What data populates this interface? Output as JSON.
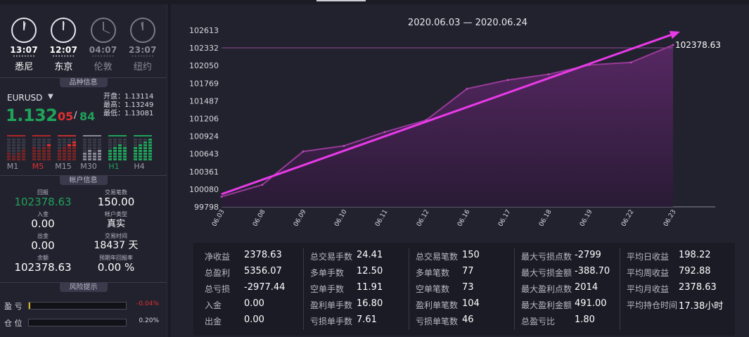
{
  "clocks": [
    {
      "time": "13:07",
      "city": "悉尼",
      "state": "active"
    },
    {
      "time": "12:07",
      "city": "东京",
      "state": "active"
    },
    {
      "time": "04:07",
      "city": "伦敦",
      "state": "dim"
    },
    {
      "time": "23:07",
      "city": "纽约",
      "state": "dim"
    }
  ],
  "sections": {
    "symbol_info": "品种信息",
    "account_info": "帐户信息",
    "risk": "风险提示"
  },
  "symbol": {
    "name": "EURUSD",
    "price_main": "1.132",
    "price_red": "05",
    "price_sep": "/",
    "price_green": "84",
    "open": "开盘：1.13114",
    "high": "最高：1.13249",
    "low": "最低：1.13081",
    "timeframes": [
      "M1",
      "M5",
      "M15",
      "M30",
      "H1",
      "H4"
    ],
    "colors": {
      "up": "#1fa35a",
      "down": "#e2302e"
    }
  },
  "account": {
    "return_label": "回报",
    "return_value": "102378.63",
    "trades_label": "交易笔数",
    "trades_value": "150.00",
    "deposit_label": "入金",
    "deposit_value": "0.00",
    "acct_type_label": "帐户类型",
    "acct_type_value": "真实",
    "withdraw_label": "出金",
    "withdraw_value": "0.00",
    "trade_time_label": "交易时间",
    "trade_time_value": "18437 天",
    "balance_label": "余额",
    "balance_value": "102378.63",
    "annual_label": "预期年回报率",
    "annual_value": "0.00 %"
  },
  "risk": {
    "pnl_label": "盈 亏",
    "pnl_value": "-0.04%",
    "pos_label": "仓 位",
    "pos_value": "0.20%"
  },
  "chart_data": {
    "type": "area",
    "title": "2020.06.03 — 2020.06.24",
    "x": [
      "06.03",
      "06.08",
      "06.09",
      "06.10",
      "06.11",
      "06.12",
      "06.16",
      "06.17",
      "06.18",
      "06.19",
      "06.22",
      "06.23"
    ],
    "values": [
      99960,
      100150,
      100680,
      100770,
      100990,
      101180,
      101680,
      101820,
      101910,
      102060,
      102100,
      102378.63
    ],
    "yticks": [
      99798,
      100080,
      100361,
      100643,
      100924,
      101206,
      101487,
      101769,
      102050,
      102332,
      102613
    ],
    "ylim": [
      99798,
      102613
    ],
    "last_label": "102378.63",
    "reference_line": 102332,
    "trend_arrow": {
      "from": 100000,
      "to": 102613
    },
    "colors": {
      "line": "#9a3a9a",
      "fill": "#4a1f52",
      "arrow": "#e83ae8"
    }
  },
  "stats": [
    [
      [
        "净收益",
        "2378.63"
      ],
      [
        "总盈利",
        "5356.07"
      ],
      [
        "总亏损",
        "-2977.44"
      ],
      [
        "入金",
        "0.00"
      ],
      [
        "出金",
        "0.00"
      ]
    ],
    [
      [
        "总交易手数",
        "24.41"
      ],
      [
        "多单手数",
        "12.50"
      ],
      [
        "空单手数",
        "11.91"
      ],
      [
        "盈利单手数",
        "16.80"
      ],
      [
        "亏损单手数",
        "7.61"
      ]
    ],
    [
      [
        "总交易笔数",
        "150"
      ],
      [
        "多单笔数",
        "77"
      ],
      [
        "空单笔数",
        "73"
      ],
      [
        "盈利单笔数",
        "104"
      ],
      [
        "亏损单笔数",
        "46"
      ]
    ],
    [
      [
        "最大亏损点数",
        "-2799"
      ],
      [
        "最大亏损金额",
        "-388.70"
      ],
      [
        "最大盈利点数",
        "2014"
      ],
      [
        "最大盈利金额",
        "491.00"
      ],
      [
        "总盈亏比",
        "1.80"
      ]
    ],
    [
      [
        "平均日收益",
        "198.22"
      ],
      [
        "平均周收益",
        "792.88"
      ],
      [
        "平均月收益",
        "2378.63"
      ],
      [
        "平均持仓时间",
        "17.38小时"
      ]
    ]
  ]
}
